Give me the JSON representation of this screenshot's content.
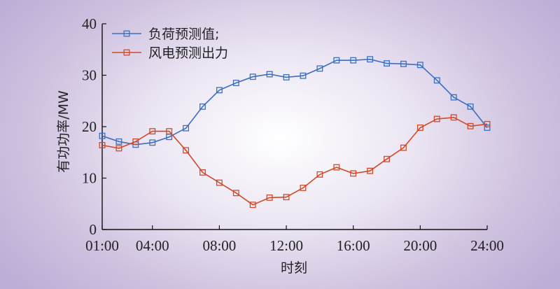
{
  "chart_data": {
    "type": "line",
    "xlabel": "时刻",
    "ylabel": "有功功率/MW",
    "ylim": [
      0,
      40
    ],
    "yticks": [
      0,
      10,
      20,
      30,
      40
    ],
    "xlim": [
      1,
      24
    ],
    "xticks": [
      {
        "value": 1,
        "label": "01:00"
      },
      {
        "value": 4,
        "label": "04:00"
      },
      {
        "value": 8,
        "label": "08:00"
      },
      {
        "value": 12,
        "label": "12:00"
      },
      {
        "value": 16,
        "label": "16:00"
      },
      {
        "value": 20,
        "label": "20:00"
      },
      {
        "value": 24,
        "label": "24:00"
      }
    ],
    "x": [
      1,
      2,
      3,
      4,
      5,
      6,
      7,
      8,
      9,
      10,
      11,
      12,
      13,
      14,
      15,
      16,
      17,
      18,
      19,
      20,
      21,
      22,
      23,
      24
    ],
    "grid": false,
    "legend_position": "top-left",
    "series": [
      {
        "name": "负荷预测值;",
        "color": "#3b6fbf",
        "marker": "square",
        "values": [
          18.2,
          17.1,
          16.5,
          16.9,
          18.0,
          19.7,
          23.9,
          27.1,
          28.5,
          29.7,
          30.2,
          29.6,
          29.9,
          31.3,
          32.9,
          32.9,
          33.1,
          32.3,
          32.2,
          32.0,
          29.0,
          25.7,
          23.9,
          19.8
        ]
      },
      {
        "name": "风电预测出力",
        "color": "#d04a2a",
        "marker": "square",
        "values": [
          16.4,
          15.8,
          17.1,
          19.1,
          19.1,
          15.4,
          11.1,
          9.1,
          7.1,
          4.8,
          6.2,
          6.3,
          8.1,
          10.7,
          12.1,
          10.9,
          11.4,
          13.7,
          15.9,
          19.8,
          21.5,
          21.8,
          20.1,
          20.5
        ]
      }
    ]
  }
}
